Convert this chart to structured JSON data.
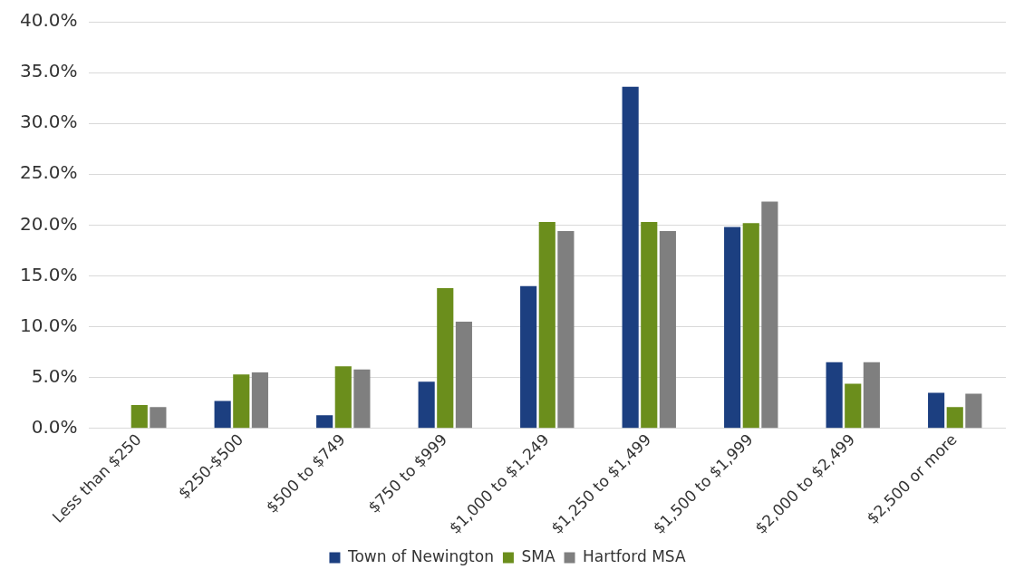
{
  "chart_data": {
    "type": "bar",
    "categories": [
      "Less than $250",
      "$250-$500",
      "$500 to $749",
      "$750 to $999",
      "$1,000 to $1,249",
      "$1,250 to $1,499",
      "$1,500 to $1,999",
      "$2,000 to $2,499",
      "$2,500 or more"
    ],
    "series": [
      {
        "name": "Town of Newington",
        "color": "#1c3f80",
        "values": [
          0,
          2.7,
          1.3,
          4.6,
          14.0,
          33.6,
          19.8,
          6.5,
          3.5
        ]
      },
      {
        "name": "SMA",
        "color": "#6b8e1c",
        "values": [
          2.3,
          5.3,
          6.1,
          13.8,
          20.3,
          20.3,
          20.2,
          4.4,
          2.1
        ]
      },
      {
        "name": "Hartford MSA",
        "color": "#7f7f7f",
        "values": [
          2.1,
          5.5,
          5.8,
          10.5,
          19.4,
          19.4,
          22.3,
          6.5,
          3.4
        ]
      }
    ],
    "ylim": [
      0,
      40
    ],
    "yticks": [
      {
        "value": 0,
        "label": "0.0%"
      },
      {
        "value": 5,
        "label": "5.0%"
      },
      {
        "value": 10,
        "label": "10.0%"
      },
      {
        "value": 15,
        "label": "15.0%"
      },
      {
        "value": 20,
        "label": "20.0%"
      },
      {
        "value": 25,
        "label": "25.0%"
      },
      {
        "value": 30,
        "label": "30.0%"
      },
      {
        "value": 35,
        "label": "35.0%"
      },
      {
        "value": 40,
        "label": "40.0%"
      }
    ],
    "grid": "y",
    "legend": "bottom"
  }
}
